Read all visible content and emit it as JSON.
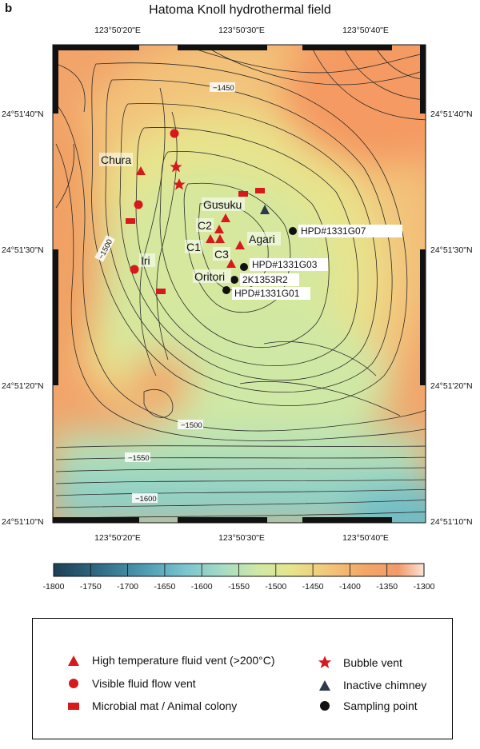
{
  "panel_letter": "b",
  "title": "Hatoma Knoll hydrothermal field",
  "axes": {
    "top_ticks": [
      "123°50'20\"E",
      "123°50'30\"E",
      "123°50'40\"E"
    ],
    "bottom_ticks": [
      "123°50'20\"E",
      "123°50'30\"E",
      "123°50'40\"E"
    ],
    "left_ticks": [
      "24°51'40\"N",
      "24°51'30\"N",
      "24°51'20\"N",
      "24°51'10\"N"
    ],
    "right_ticks": [
      "24°51'40\"N",
      "24°51'30\"N",
      "24°51'20\"N",
      "24°51'10\"N"
    ]
  },
  "contour_labels": [
    "−1450",
    "−1500",
    "−1500",
    "−1550",
    "−1600"
  ],
  "site_labels": [
    "Chura",
    "Gusuku",
    "C2",
    "C1",
    "C3",
    "Agari",
    "Iri",
    "Oritori"
  ],
  "sample_labels": [
    "HPD#1331G07",
    "HPD#1331G03",
    "2K1353R2",
    "HPD#1331G01"
  ],
  "colorbar": {
    "ticks": [
      "-1800",
      "-1750",
      "-1700",
      "-1650",
      "-1600",
      "-1550",
      "-1500",
      "-1450",
      "-1400",
      "-1350",
      "-1300"
    ],
    "colors": [
      "#1d3f55",
      "#2f6a83",
      "#4f9db4",
      "#7cc6cf",
      "#a8dcc4",
      "#cfe8a5",
      "#e6e58c",
      "#f2c77a",
      "#f3a668",
      "#f39a6a",
      "#fbe3d5"
    ]
  },
  "legend": {
    "high_temp_vent": "High temperature fluid vent (>200°C)",
    "visible_flow_vent": "Visible fluid flow vent",
    "microbial_mat": "Microbial mat / Animal colony",
    "bubble_vent": "Bubble vent",
    "inactive_chimney": "Inactive chimney",
    "sampling_point": "Sampling point"
  },
  "colors": {
    "symbol_red": "#d7191c",
    "chimney_gray": "#2e3a4c",
    "frame_black": "#111111"
  }
}
